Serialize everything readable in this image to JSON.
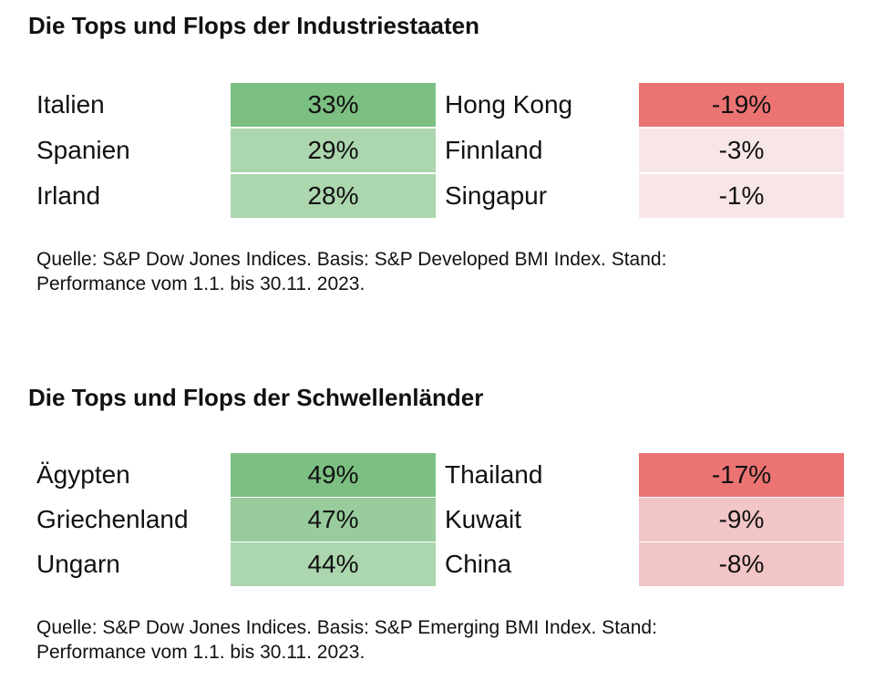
{
  "chart_data": [
    {
      "type": "table",
      "title": "Die Tops und Flops der Industriestaaten",
      "tops": [
        {
          "country": "Italien",
          "value": 33,
          "label": "33%"
        },
        {
          "country": "Spanien",
          "value": 29,
          "label": "29%"
        },
        {
          "country": "Irland",
          "value": 28,
          "label": "28%"
        }
      ],
      "flops": [
        {
          "country": "Hong Kong",
          "value": -19,
          "label": "-19%"
        },
        {
          "country": "Finnland",
          "value": -3,
          "label": "-3%"
        },
        {
          "country": "Singapur",
          "value": -1,
          "label": "-1%"
        }
      ],
      "source_line1": "Quelle: S&P Dow Jones Indices. Basis: S&P Developed BMI Index. Stand:",
      "source_line2": "Performance vom 1.1. bis 30.11. 2023."
    },
    {
      "type": "table",
      "title": "Die Tops und Flops der Schwellenländer",
      "tops": [
        {
          "country": "Ägypten",
          "value": 49,
          "label": "49%"
        },
        {
          "country": "Griechenland",
          "value": 47,
          "label": "47%"
        },
        {
          "country": "Ungarn",
          "value": 44,
          "label": "44%"
        }
      ],
      "flops": [
        {
          "country": "Thailand",
          "value": -17,
          "label": "-17%"
        },
        {
          "country": "Kuwait",
          "value": -9,
          "label": "-9%"
        },
        {
          "country": "China",
          "value": -8,
          "label": "-8%"
        }
      ],
      "source_line1": "Quelle: S&P Dow Jones Indices. Basis: S&P Emerging BMI Index. Stand:",
      "source_line2": "Performance vom 1.1. bis 30.11. 2023."
    }
  ],
  "colors": {
    "green_dark": "#7cbf82",
    "green_mid": "#98cc9c",
    "green_light": "#acd6ae",
    "red_dark": "#eb7473",
    "red_mid": "#f2c5c6",
    "red_light": "#f8e5e7"
  }
}
